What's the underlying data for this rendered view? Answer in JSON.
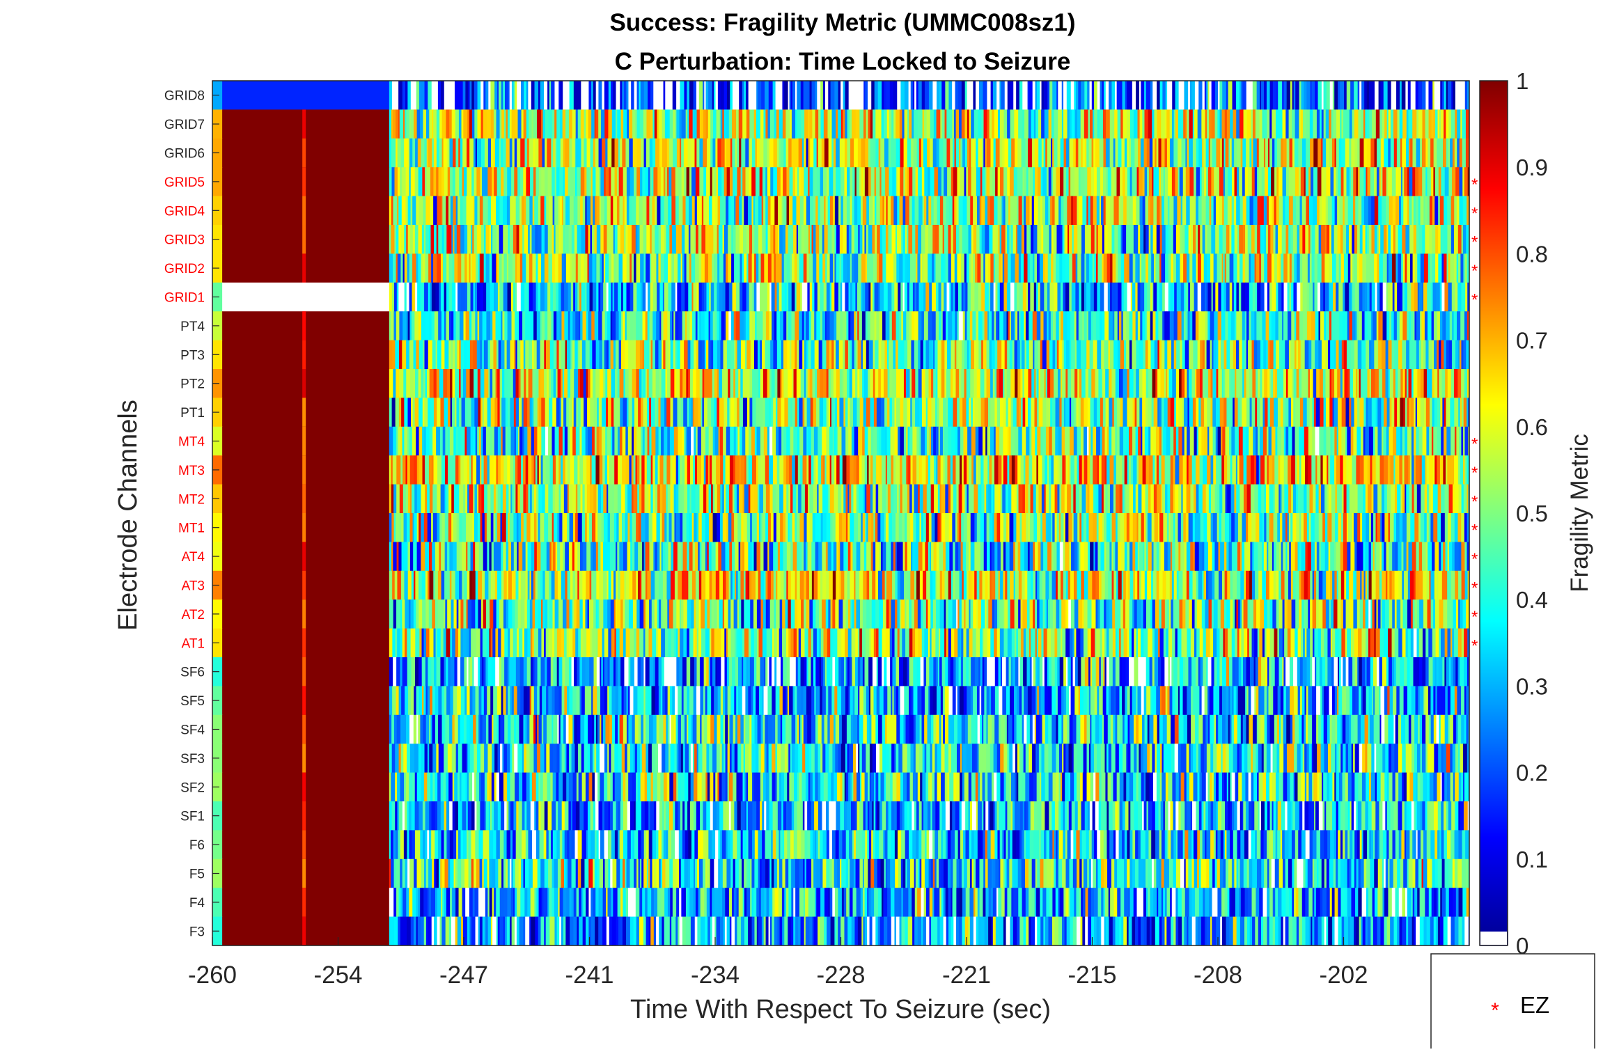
{
  "chart_data": {
    "type": "heatmap",
    "title_line1": "Success: Fragility Metric (UMMC008sz1)",
    "title_line2": "C Perturbation:  Time Locked to Seizure",
    "xlabel": "Time With Respect To Seizure (sec)",
    "ylabel": "Electrode Channels",
    "xlim": [
      -260,
      -196
    ],
    "x_ticks": [
      "-260",
      "-254",
      "-247",
      "-241",
      "-234",
      "-228",
      "-221",
      "-215",
      "-208",
      "-202"
    ],
    "x_tick_values": [
      -260,
      -253.6,
      -247.2,
      -240.8,
      -234.4,
      -228,
      -221.6,
      -215.2,
      -208.8,
      -202.4
    ],
    "colorbar": {
      "label": "Fragility Metric",
      "range": [
        0,
        1
      ],
      "ticks": [
        "0",
        "0.1",
        "0.2",
        "0.3",
        "0.4",
        "0.5",
        "0.6",
        "0.7",
        "0.8",
        "0.9",
        "1"
      ],
      "colormap": "jet"
    },
    "channels": [
      {
        "name": "GRID8",
        "ez": false
      },
      {
        "name": "GRID7",
        "ez": false
      },
      {
        "name": "GRID6",
        "ez": false
      },
      {
        "name": "GRID5",
        "ez": true
      },
      {
        "name": "GRID4",
        "ez": true
      },
      {
        "name": "GRID3",
        "ez": true
      },
      {
        "name": "GRID2",
        "ez": true
      },
      {
        "name": "GRID1",
        "ez": true
      },
      {
        "name": "PT4",
        "ez": false
      },
      {
        "name": "PT3",
        "ez": false
      },
      {
        "name": "PT2",
        "ez": false
      },
      {
        "name": "PT1",
        "ez": false
      },
      {
        "name": "MT4",
        "ez": true
      },
      {
        "name": "MT3",
        "ez": true
      },
      {
        "name": "MT2",
        "ez": true
      },
      {
        "name": "MT1",
        "ez": true
      },
      {
        "name": "AT4",
        "ez": true
      },
      {
        "name": "AT3",
        "ez": true
      },
      {
        "name": "AT2",
        "ez": true
      },
      {
        "name": "AT1",
        "ez": true
      },
      {
        "name": "SF6",
        "ez": false
      },
      {
        "name": "SF5",
        "ez": false
      },
      {
        "name": "SF4",
        "ez": false
      },
      {
        "name": "SF3",
        "ez": false
      },
      {
        "name": "SF2",
        "ez": false
      },
      {
        "name": "SF1",
        "ez": false
      },
      {
        "name": "F6",
        "ez": false
      },
      {
        "name": "F5",
        "ez": false
      },
      {
        "name": "F4",
        "ez": false
      },
      {
        "name": "F3",
        "ez": false
      }
    ],
    "channel_mean_fragility": [
      0.14,
      0.55,
      0.56,
      0.56,
      0.52,
      0.5,
      0.5,
      0.32,
      0.42,
      0.5,
      0.58,
      0.52,
      0.44,
      0.62,
      0.53,
      0.48,
      0.46,
      0.6,
      0.48,
      0.5,
      0.26,
      0.32,
      0.36,
      0.36,
      0.38,
      0.3,
      0.34,
      0.38,
      0.3,
      0.26
    ],
    "early_high_fragility_window": {
      "x_range": [
        -259.5,
        -251
      ],
      "value": 1.0
    },
    "missing_data": [
      {
        "channel": "GRID1",
        "x_range": [
          -259.5,
          -251
        ]
      }
    ],
    "legend": {
      "entries": [
        "EZ"
      ],
      "marker": "*",
      "marker_color": "#ff0000",
      "placement": "bottom-right"
    },
    "grid": false
  }
}
